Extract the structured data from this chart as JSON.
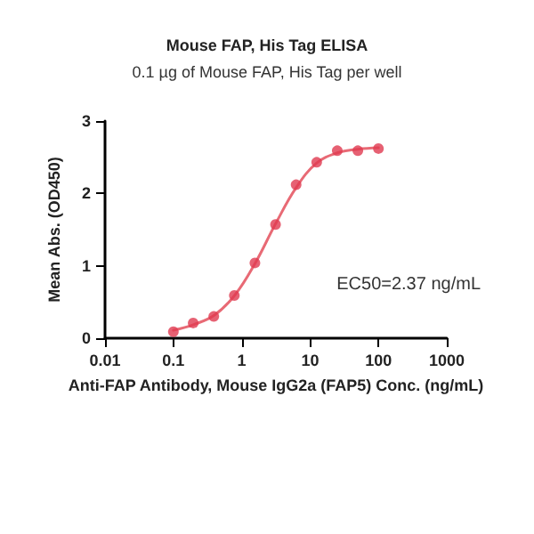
{
  "chart_data": {
    "type": "scatter",
    "title": "Mouse FAP, His Tag ELISA",
    "subtitle": "0.1 µg of Mouse FAP, His Tag per well",
    "xlabel": "Anti-FAP Antibody, Mouse IgG2a (FAP5) Conc. (ng/mL)",
    "ylabel": "Mean Abs. (OD450)",
    "log": "x",
    "xlim": [
      0.01,
      1000
    ],
    "xticks": [
      0.01,
      0.1,
      1,
      10,
      100,
      1000
    ],
    "ylim": [
      0,
      3
    ],
    "yticks": [
      0,
      1,
      2,
      3
    ],
    "grid": false,
    "marker": "circle",
    "annotations": [
      "EC50=2.37 ng/mL"
    ],
    "series": [
      {
        "type": "line",
        "color": "#e86a75",
        "marker": "none",
        "line_style": "solid",
        "x": [
          0.1,
          0.2,
          0.4,
          0.8,
          1.56,
          3.125,
          6.25,
          12.5,
          25,
          50,
          100
        ],
        "values": [
          0.11,
          0.19,
          0.32,
          0.6,
          1.03,
          1.58,
          2.08,
          2.42,
          2.56,
          2.61,
          2.63
        ]
      },
      {
        "color": "#e03a50",
        "x": [
          0.1,
          0.195,
          0.39,
          0.78,
          1.56,
          3.125,
          6.25,
          12.5,
          25,
          50,
          100
        ],
        "values": [
          0.09,
          0.21,
          0.3,
          0.59,
          1.04,
          1.57,
          2.12,
          2.43,
          2.59,
          2.59,
          2.62
        ]
      }
    ]
  }
}
